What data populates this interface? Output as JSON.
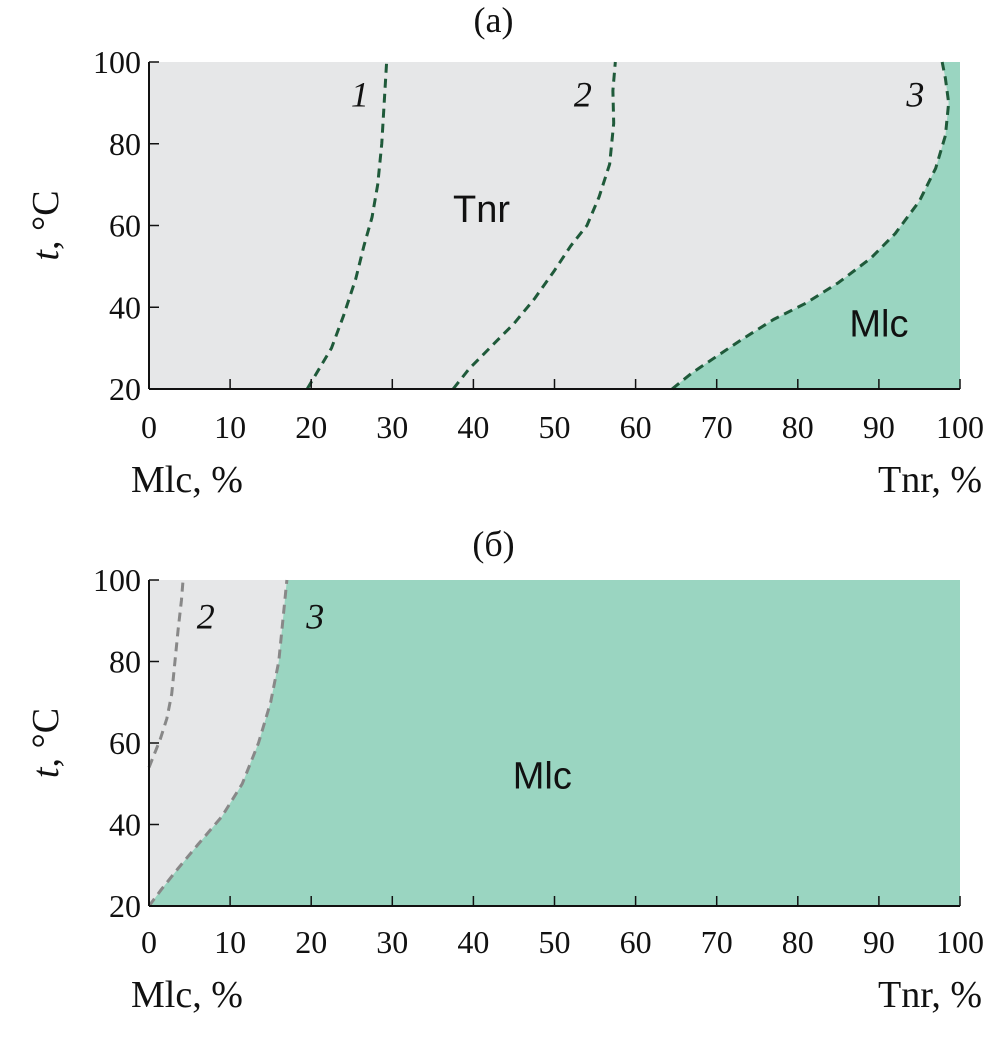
{
  "chart_data": [
    {
      "type": "area",
      "panel_label": "(a)",
      "xlim": [
        0,
        100
      ],
      "ylim": [
        20,
        100
      ],
      "x_ticks": [
        0,
        10,
        20,
        30,
        40,
        50,
        60,
        70,
        80,
        90,
        100
      ],
      "y_ticks": [
        20,
        40,
        60,
        80,
        100
      ],
      "x_left_label": "Mlc, %",
      "x_right_label": "Tnr, %",
      "ylabel_italic": "t",
      "ylabel_rest": ", °C",
      "grid": false,
      "colors": {
        "light_region": "#e6e7e8",
        "dark_region": "#9ad5c1",
        "curve": "#1f5a3a"
      },
      "regions": [
        {
          "label": "Tnr",
          "x": 41,
          "y": 64
        },
        {
          "label": "Mlc",
          "x": 90,
          "y": 36
        }
      ],
      "curves": [
        {
          "name": "1",
          "label_x": 26,
          "label_y": 92,
          "points": [
            [
              19.5,
              20
            ],
            [
              21,
              25
            ],
            [
              22.5,
              30
            ],
            [
              24,
              38
            ],
            [
              25.5,
              47
            ],
            [
              26.5,
              55
            ],
            [
              27.5,
              62
            ],
            [
              28.2,
              70
            ],
            [
              28.7,
              80
            ],
            [
              29,
              90
            ],
            [
              29.3,
              100
            ]
          ]
        },
        {
          "name": "2",
          "label_x": 53.5,
          "label_y": 92,
          "points": [
            [
              37.5,
              20
            ],
            [
              39.5,
              25
            ],
            [
              42,
              30
            ],
            [
              45,
              36
            ],
            [
              47.5,
              42
            ],
            [
              50,
              49
            ],
            [
              52,
              55
            ],
            [
              54,
              60
            ],
            [
              55.5,
              67
            ],
            [
              56.8,
              75
            ],
            [
              57.3,
              85
            ],
            [
              57.2,
              93
            ],
            [
              57.5,
              100
            ]
          ]
        },
        {
          "name": "3",
          "label_x": 94.5,
          "label_y": 92,
          "fill_right": true,
          "points": [
            [
              64.5,
              20
            ],
            [
              67,
              24
            ],
            [
              70,
              28
            ],
            [
              73,
              32
            ],
            [
              77,
              37
            ],
            [
              81,
              41
            ],
            [
              85,
              46
            ],
            [
              89,
              52
            ],
            [
              92,
              58
            ],
            [
              95,
              66
            ],
            [
              97,
              74
            ],
            [
              98.2,
              82
            ],
            [
              98.6,
              90
            ],
            [
              98.2,
              96
            ],
            [
              97.8,
              100
            ]
          ]
        }
      ]
    },
    {
      "type": "area",
      "panel_label": "(б)",
      "xlim": [
        0,
        100
      ],
      "ylim": [
        20,
        100
      ],
      "x_ticks": [
        0,
        10,
        20,
        30,
        40,
        50,
        60,
        70,
        80,
        90,
        100
      ],
      "y_ticks": [
        20,
        40,
        60,
        80,
        100
      ],
      "x_left_label": "Mlc, %",
      "x_right_label": "Tnr, %",
      "ylabel_italic": "t",
      "ylabel_rest": ", °C",
      "grid": false,
      "colors": {
        "light_region": "#e6e7e8",
        "dark_region": "#9ad5c1",
        "curve": "#888888"
      },
      "regions": [
        {
          "label": "Mlc",
          "x": 48.5,
          "y": 52
        }
      ],
      "curves": [
        {
          "name": "2",
          "label_x": 7,
          "label_y": 91,
          "points": [
            [
              0,
              54
            ],
            [
              0.6,
              57
            ],
            [
              1.4,
              61
            ],
            [
              2.2,
              66
            ],
            [
              2.8,
              72
            ],
            [
              3.2,
              80
            ],
            [
              3.6,
              88
            ],
            [
              4,
              95
            ],
            [
              4.2,
              100
            ]
          ]
        },
        {
          "name": "3",
          "label_x": 20.5,
          "label_y": 91,
          "fill_right": true,
          "points": [
            [
              0,
              20
            ],
            [
              1.5,
              24
            ],
            [
              3.5,
              29
            ],
            [
              6,
              35
            ],
            [
              9,
              42
            ],
            [
              11.5,
              50
            ],
            [
              13.5,
              60
            ],
            [
              15,
              70
            ],
            [
              16,
              80
            ],
            [
              16.5,
              90
            ],
            [
              17,
              100
            ]
          ]
        }
      ]
    }
  ]
}
